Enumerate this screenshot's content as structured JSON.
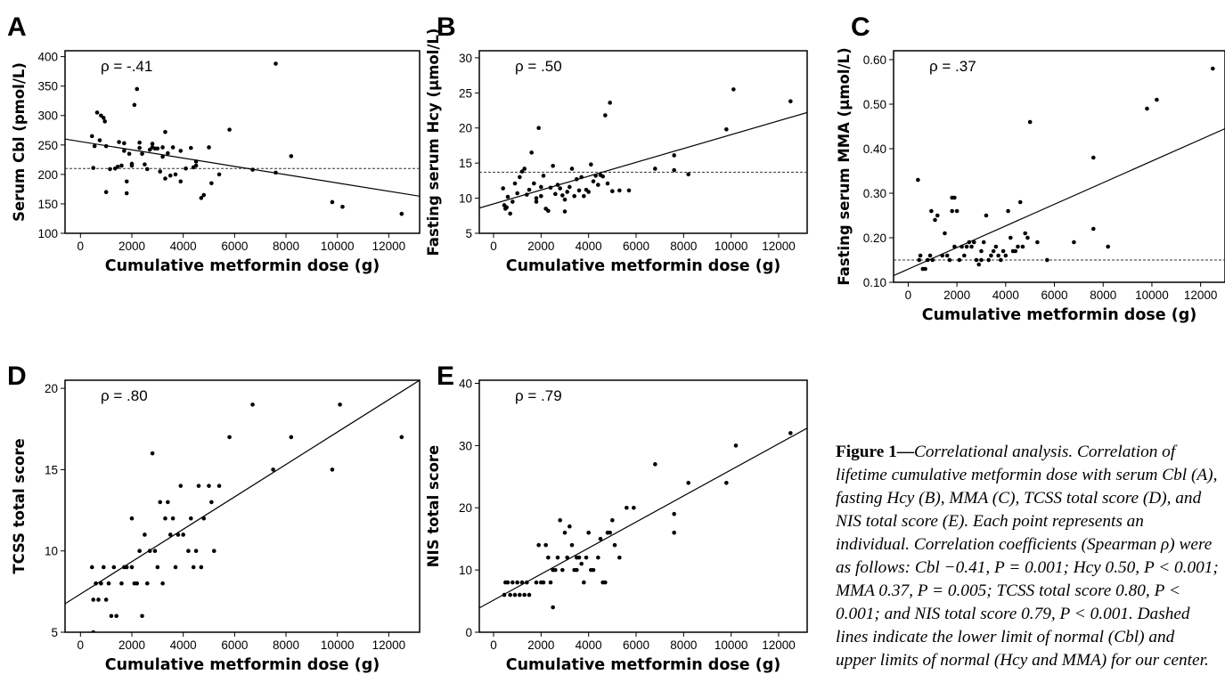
{
  "caption": {
    "title": "Figure 1—",
    "body": "Correlational analysis. Correlation of lifetime cumulative metformin dose with serum Cbl (A), fasting Hcy (B), MMA (C), TCSS total score (D), and NIS total score (E). Each point represents an individual. Correlation coefficients (Spearman ρ) were as follows: Cbl −0.41, P = 0.001; Hcy 0.50, P < 0.001; MMA 0.37, P = 0.005; TCSS total score 0.80, P < 0.001; and NIS total score 0.79, P < 0.001. Dashed lines indicate the lower limit of normal (Cbl) and upper limits of normal (Hcy and MMA) for our center."
  },
  "chart_data": [
    {
      "id": "A",
      "type": "scatter",
      "letter": "A",
      "annotation": "ρ = -.41",
      "xlabel": "Cumulative metformin dose (g)",
      "ylabel": "Serum Cbl (pmol/L)",
      "xlim": [
        -600,
        13200
      ],
      "ylim": [
        100,
        410
      ],
      "xticks": [
        0,
        2000,
        4000,
        6000,
        8000,
        10000,
        12000
      ],
      "yticks": [
        100,
        150,
        200,
        250,
        300,
        350,
        400
      ],
      "ytick_labels": [
        "100",
        "150",
        "200",
        "250",
        "300",
        "350",
        "400"
      ],
      "fit_line": [
        [
          -600,
          260
        ],
        [
          13200,
          163
        ]
      ],
      "reference_line": 210,
      "points": [
        [
          450,
          265
        ],
        [
          500,
          211
        ],
        [
          550,
          248
        ],
        [
          650,
          305
        ],
        [
          750,
          258
        ],
        [
          800,
          300
        ],
        [
          900,
          296
        ],
        [
          950,
          290
        ],
        [
          1000,
          248
        ],
        [
          1000,
          170
        ],
        [
          1150,
          209
        ],
        [
          1350,
          210
        ],
        [
          1450,
          213
        ],
        [
          1500,
          255
        ],
        [
          1600,
          215
        ],
        [
          1700,
          253
        ],
        [
          1700,
          240
        ],
        [
          1800,
          168
        ],
        [
          1800,
          188
        ],
        [
          1900,
          235
        ],
        [
          2000,
          218
        ],
        [
          2000,
          215
        ],
        [
          2100,
          318
        ],
        [
          2200,
          345
        ],
        [
          2300,
          245
        ],
        [
          2300,
          254
        ],
        [
          2400,
          235
        ],
        [
          2500,
          217
        ],
        [
          2600,
          209
        ],
        [
          2700,
          242
        ],
        [
          2800,
          246
        ],
        [
          2800,
          252
        ],
        [
          2900,
          244
        ],
        [
          3000,
          244
        ],
        [
          3100,
          205
        ],
        [
          3200,
          230
        ],
        [
          3200,
          246
        ],
        [
          3300,
          272
        ],
        [
          3300,
          193
        ],
        [
          3400,
          236
        ],
        [
          3500,
          198
        ],
        [
          3600,
          246
        ],
        [
          3700,
          200
        ],
        [
          3900,
          240
        ],
        [
          3900,
          188
        ],
        [
          4100,
          210
        ],
        [
          4300,
          245
        ],
        [
          4400,
          212
        ],
        [
          4500,
          222
        ],
        [
          4500,
          215
        ],
        [
          4700,
          160
        ],
        [
          4800,
          165
        ],
        [
          5000,
          246
        ],
        [
          5100,
          185
        ],
        [
          5400,
          200
        ],
        [
          5800,
          276
        ],
        [
          6700,
          208
        ],
        [
          7600,
          388
        ],
        [
          7600,
          203
        ],
        [
          8200,
          231
        ],
        [
          9800,
          153
        ],
        [
          10200,
          145
        ],
        [
          12500,
          133
        ]
      ]
    },
    {
      "id": "B",
      "type": "scatter",
      "letter": "B",
      "annotation": "ρ = .50",
      "xlabel": "Cumulative metformin dose (g)",
      "ylabel": "Fasting serum Hcy (μmol/L)",
      "xlim": [
        -600,
        13200
      ],
      "ylim": [
        5,
        31
      ],
      "xticks": [
        0,
        2000,
        4000,
        6000,
        8000,
        10000,
        12000
      ],
      "yticks": [
        5,
        10,
        15,
        20,
        25,
        30
      ],
      "ytick_labels": [
        "5",
        "10",
        "15",
        "20",
        "25",
        "30"
      ],
      "fit_line": [
        [
          -600,
          8.6
        ],
        [
          13200,
          22.2
        ]
      ],
      "reference_line": 13.7,
      "points": [
        [
          400,
          11.4
        ],
        [
          450,
          9.0
        ],
        [
          500,
          8.5
        ],
        [
          550,
          8.7
        ],
        [
          600,
          10.2
        ],
        [
          700,
          7.8
        ],
        [
          800,
          9.5
        ],
        [
          900,
          12.1
        ],
        [
          1000,
          10.7
        ],
        [
          1100,
          13.0
        ],
        [
          1200,
          13.8
        ],
        [
          1300,
          14.2
        ],
        [
          1400,
          10.5
        ],
        [
          1500,
          11.2
        ],
        [
          1600,
          16.5
        ],
        [
          1700,
          12.1
        ],
        [
          1800,
          10.0
        ],
        [
          1800,
          9.5
        ],
        [
          1900,
          20.0
        ],
        [
          2000,
          11.6
        ],
        [
          2000,
          10.3
        ],
        [
          2100,
          13.2
        ],
        [
          2200,
          8.5
        ],
        [
          2300,
          8.2
        ],
        [
          2400,
          11.5
        ],
        [
          2500,
          14.6
        ],
        [
          2600,
          10.6
        ],
        [
          2700,
          11.9
        ],
        [
          2800,
          11.4
        ],
        [
          2900,
          10.4
        ],
        [
          3000,
          9.8
        ],
        [
          3000,
          8.1
        ],
        [
          3100,
          10.9
        ],
        [
          3200,
          11.6
        ],
        [
          3300,
          14.2
        ],
        [
          3400,
          10.3
        ],
        [
          3500,
          12.7
        ],
        [
          3600,
          11.1
        ],
        [
          3700,
          13.0
        ],
        [
          3800,
          10.3
        ],
        [
          3900,
          11.2
        ],
        [
          4000,
          10.9
        ],
        [
          4100,
          14.8
        ],
        [
          4200,
          12.4
        ],
        [
          4300,
          13.2
        ],
        [
          4400,
          11.9
        ],
        [
          4500,
          13.3
        ],
        [
          4600,
          13.1
        ],
        [
          4700,
          21.8
        ],
        [
          4800,
          12.1
        ],
        [
          4900,
          23.6
        ],
        [
          5000,
          11.0
        ],
        [
          5300,
          11.1
        ],
        [
          5700,
          11.1
        ],
        [
          6800,
          14.2
        ],
        [
          7600,
          16.1
        ],
        [
          7600,
          14.0
        ],
        [
          8200,
          13.4
        ],
        [
          9800,
          19.8
        ],
        [
          10100,
          25.5
        ],
        [
          12500,
          23.8
        ]
      ]
    },
    {
      "id": "C",
      "type": "scatter",
      "letter": "C",
      "annotation": "ρ = .37",
      "xlabel": "Cumulative metformin dose (g)",
      "ylabel": "Fasting serum MMA (μmol/L)",
      "xlim": [
        -600,
        13000
      ],
      "ylim": [
        0.1,
        0.62
      ],
      "xticks": [
        0,
        2000,
        4000,
        6000,
        8000,
        10000,
        12000
      ],
      "yticks": [
        0.1,
        0.2,
        0.3,
        0.4,
        0.5,
        0.6
      ],
      "ytick_labels": [
        "0.10",
        "0.20",
        "0.30",
        "0.40",
        "0.50",
        "0.60"
      ],
      "fit_line": [
        [
          -600,
          0.115
        ],
        [
          13000,
          0.445
        ]
      ],
      "reference_line": 0.15,
      "points": [
        [
          400,
          0.33
        ],
        [
          450,
          0.15
        ],
        [
          500,
          0.16
        ],
        [
          600,
          0.13
        ],
        [
          700,
          0.13
        ],
        [
          800,
          0.15
        ],
        [
          900,
          0.16
        ],
        [
          950,
          0.26
        ],
        [
          1000,
          0.15
        ],
        [
          1100,
          0.24
        ],
        [
          1200,
          0.25
        ],
        [
          1400,
          0.16
        ],
        [
          1500,
          0.21
        ],
        [
          1600,
          0.16
        ],
        [
          1700,
          0.15
        ],
        [
          1800,
          0.26
        ],
        [
          1800,
          0.29
        ],
        [
          1900,
          0.29
        ],
        [
          1900,
          0.18
        ],
        [
          2000,
          0.26
        ],
        [
          2100,
          0.15
        ],
        [
          2200,
          0.18
        ],
        [
          2300,
          0.16
        ],
        [
          2400,
          0.18
        ],
        [
          2500,
          0.19
        ],
        [
          2600,
          0.18
        ],
        [
          2700,
          0.19
        ],
        [
          2800,
          0.15
        ],
        [
          2900,
          0.14
        ],
        [
          3000,
          0.17
        ],
        [
          3000,
          0.15
        ],
        [
          3100,
          0.19
        ],
        [
          3200,
          0.25
        ],
        [
          3300,
          0.15
        ],
        [
          3400,
          0.16
        ],
        [
          3500,
          0.17
        ],
        [
          3600,
          0.18
        ],
        [
          3700,
          0.16
        ],
        [
          3800,
          0.15
        ],
        [
          3900,
          0.17
        ],
        [
          4000,
          0.16
        ],
        [
          4100,
          0.26
        ],
        [
          4200,
          0.2
        ],
        [
          4300,
          0.17
        ],
        [
          4400,
          0.17
        ],
        [
          4500,
          0.18
        ],
        [
          4600,
          0.28
        ],
        [
          4700,
          0.18
        ],
        [
          4800,
          0.21
        ],
        [
          4900,
          0.2
        ],
        [
          5000,
          0.46
        ],
        [
          5300,
          0.19
        ],
        [
          5700,
          0.15
        ],
        [
          6800,
          0.19
        ],
        [
          7600,
          0.38
        ],
        [
          7600,
          0.22
        ],
        [
          8200,
          0.18
        ],
        [
          9800,
          0.49
        ],
        [
          10200,
          0.51
        ],
        [
          12500,
          0.58
        ]
      ]
    },
    {
      "id": "D",
      "type": "scatter",
      "letter": "D",
      "annotation": "ρ = .80",
      "xlabel": "Cumulative metformin dose (g)",
      "ylabel": "TCSS total score",
      "xlim": [
        -600,
        13200
      ],
      "ylim": [
        5,
        20.5
      ],
      "xticks": [
        0,
        2000,
        4000,
        6000,
        8000,
        10000,
        12000
      ],
      "yticks": [
        5,
        10,
        15,
        20
      ],
      "ytick_labels": [
        "5",
        "10",
        "15",
        "20"
      ],
      "fit_line": [
        [
          -600,
          6.75
        ],
        [
          13200,
          20.5
        ]
      ],
      "points": [
        [
          450,
          9
        ],
        [
          500,
          7
        ],
        [
          500,
          5
        ],
        [
          600,
          8
        ],
        [
          700,
          7
        ],
        [
          800,
          8
        ],
        [
          900,
          9
        ],
        [
          1000,
          7
        ],
        [
          1100,
          8
        ],
        [
          1200,
          6
        ],
        [
          1300,
          9
        ],
        [
          1400,
          6
        ],
        [
          1600,
          8
        ],
        [
          1700,
          9
        ],
        [
          1800,
          9
        ],
        [
          2000,
          9
        ],
        [
          2000,
          12
        ],
        [
          2100,
          8
        ],
        [
          2200,
          8
        ],
        [
          2300,
          10
        ],
        [
          2400,
          6
        ],
        [
          2500,
          11
        ],
        [
          2600,
          8
        ],
        [
          2700,
          10
        ],
        [
          2800,
          16
        ],
        [
          2900,
          10
        ],
        [
          3000,
          9
        ],
        [
          3100,
          13
        ],
        [
          3200,
          8
        ],
        [
          3300,
          12
        ],
        [
          3400,
          13
        ],
        [
          3500,
          11
        ],
        [
          3600,
          12
        ],
        [
          3700,
          9
        ],
        [
          3800,
          11
        ],
        [
          3900,
          14
        ],
        [
          4000,
          11
        ],
        [
          4200,
          10
        ],
        [
          4300,
          12
        ],
        [
          4400,
          9
        ],
        [
          4500,
          10
        ],
        [
          4600,
          14
        ],
        [
          4700,
          9
        ],
        [
          4800,
          12
        ],
        [
          5000,
          14
        ],
        [
          5100,
          13
        ],
        [
          5200,
          10
        ],
        [
          5400,
          14
        ],
        [
          5800,
          17
        ],
        [
          6700,
          19
        ],
        [
          7500,
          15
        ],
        [
          8200,
          17
        ],
        [
          9800,
          15
        ],
        [
          10100,
          19
        ],
        [
          12500,
          17
        ]
      ]
    },
    {
      "id": "E",
      "type": "scatter",
      "letter": "E",
      "annotation": "ρ = .79",
      "xlabel": "Cumulative metformin dose (g)",
      "ylabel": "NIS total score",
      "xlim": [
        -600,
        13200
      ],
      "ylim": [
        0,
        40.5
      ],
      "xticks": [
        0,
        2000,
        4000,
        6000,
        8000,
        10000,
        12000
      ],
      "yticks": [
        0,
        10,
        20,
        30,
        40
      ],
      "ytick_labels": [
        "0",
        "10",
        "20",
        "30",
        "40"
      ],
      "fit_line": [
        [
          -600,
          3.9
        ],
        [
          13200,
          32.8
        ]
      ],
      "points": [
        [
          450,
          6
        ],
        [
          500,
          8
        ],
        [
          600,
          8
        ],
        [
          700,
          6
        ],
        [
          800,
          8
        ],
        [
          900,
          6
        ],
        [
          1000,
          8
        ],
        [
          1100,
          6
        ],
        [
          1200,
          8
        ],
        [
          1300,
          6
        ],
        [
          1400,
          8
        ],
        [
          1500,
          6
        ],
        [
          1800,
          8
        ],
        [
          1900,
          14
        ],
        [
          2000,
          8
        ],
        [
          2100,
          8
        ],
        [
          2200,
          14
        ],
        [
          2300,
          12
        ],
        [
          2400,
          8
        ],
        [
          2500,
          4
        ],
        [
          2500,
          10
        ],
        [
          2600,
          10
        ],
        [
          2700,
          12
        ],
        [
          2800,
          18
        ],
        [
          2900,
          10
        ],
        [
          3000,
          16
        ],
        [
          3100,
          12
        ],
        [
          3200,
          17
        ],
        [
          3300,
          14
        ],
        [
          3400,
          10
        ],
        [
          3500,
          10
        ],
        [
          3500,
          12
        ],
        [
          3600,
          12
        ],
        [
          3700,
          11
        ],
        [
          3800,
          8
        ],
        [
          3900,
          12
        ],
        [
          4000,
          16
        ],
        [
          4100,
          10
        ],
        [
          4200,
          10
        ],
        [
          4400,
          12
        ],
        [
          4500,
          15
        ],
        [
          4600,
          8
        ],
        [
          4700,
          8
        ],
        [
          4800,
          16
        ],
        [
          4900,
          16
        ],
        [
          5000,
          18
        ],
        [
          5100,
          14
        ],
        [
          5300,
          12
        ],
        [
          5600,
          20
        ],
        [
          5900,
          20
        ],
        [
          6800,
          27
        ],
        [
          7600,
          19
        ],
        [
          7600,
          16
        ],
        [
          8200,
          24
        ],
        [
          9800,
          24
        ],
        [
          10200,
          30
        ],
        [
          12500,
          32
        ]
      ]
    }
  ]
}
